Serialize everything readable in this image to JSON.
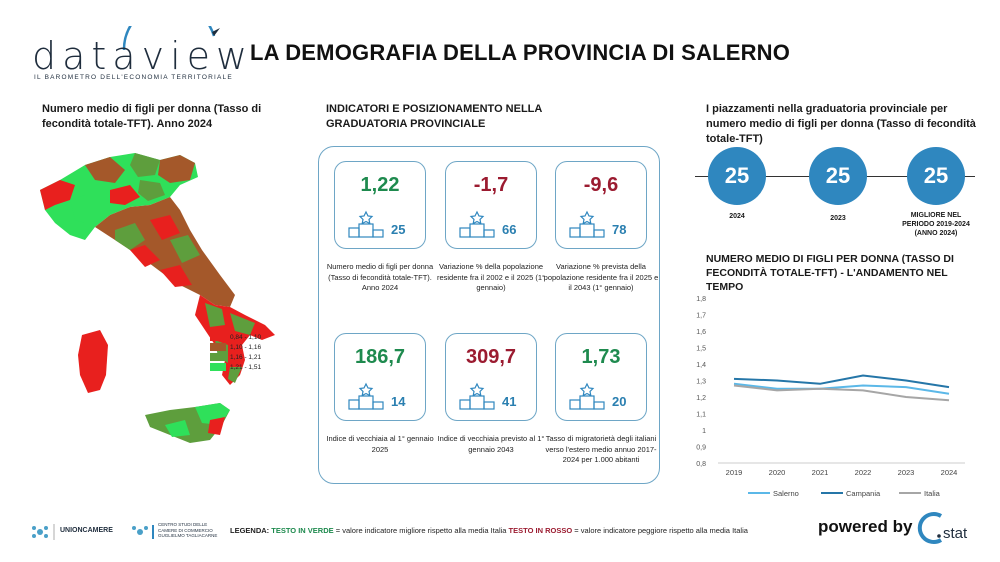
{
  "brand": {
    "logo_word": "dataview",
    "logo_tagline": "IL BAROMETRO DELL'ECONOMIA TERRITORIALE"
  },
  "title": "LA DEMOGRAFIA DELLA PROVINCIA DI SALERNO",
  "map": {
    "title": "Numero medio di figli per donna (Tasso di fecondità totale-TFT). Anno 2024",
    "legend": [
      {
        "label": "0,84 - 1,10",
        "color": "#e8201e"
      },
      {
        "label": "1,10 - 1,16",
        "color": "#a4582a"
      },
      {
        "label": "1,16 - 1,21",
        "color": "#5e9e3d"
      },
      {
        "label": "1,21 - 1,51",
        "color": "#2fe05a"
      }
    ]
  },
  "indicators": {
    "title": "INDICATORI E POSIZIONAMENTO NELLA GRADUATORIA PROVINCIALE",
    "cards": [
      {
        "value": "1,22",
        "tone": "green",
        "rank": "25",
        "desc": "Numero medio di figli per donna (Tasso di fecondità totale-TFT). Anno 2024"
      },
      {
        "value": "-1,7",
        "tone": "red",
        "rank": "66",
        "desc": "Variazione % della popolazione residente fra il 2002 e il 2025 (1° gennaio)"
      },
      {
        "value": "-9,6",
        "tone": "red",
        "rank": "78",
        "desc": "Variazione % prevista della popolazione residente fra il 2025 e il 2043 (1° gennaio)"
      },
      {
        "value": "186,7",
        "tone": "green",
        "rank": "14",
        "desc": "Indice di vecchiaia al 1° gennaio 2025"
      },
      {
        "value": "309,7",
        "tone": "red",
        "rank": "41",
        "desc": "Indice di vecchiaia previsto al 1° gennaio 2043"
      },
      {
        "value": "1,73",
        "tone": "green",
        "rank": "20",
        "desc": "Tasso di migratorietà degli italiani verso l'estero medio annuo 2017-2024 per 1.000 abitanti"
      }
    ]
  },
  "ranking": {
    "title": "I piazzamenti nella graduatoria provinciale per numero medio di figli per donna (Tasso di fecondità totale-TFT)",
    "items": [
      {
        "value": "25",
        "label": "2024"
      },
      {
        "value": "25",
        "label": "2023"
      },
      {
        "value": "25",
        "label": "MIGLIORE NEL PERIODO 2019-2024 (ANNO 2024)"
      }
    ]
  },
  "trend": {
    "title": "NUMERO MEDIO DI FIGLI PER DONNA (TASSO DI FECONDITÀ TOTALE-TFT) - L'ANDAMENTO NEL TEMPO"
  },
  "chart_data": {
    "type": "line",
    "title": "NUMERO MEDIO DI FIGLI PER DONNA (TASSO DI FECONDITÀ TOTALE-TFT) - L'ANDAMENTO NEL TEMPO",
    "x": [
      "2019",
      "2020",
      "2021",
      "2022",
      "2023",
      "2024"
    ],
    "y_ticks": [
      "0,8",
      "0,9",
      "1",
      "1,1",
      "1,2",
      "1,3",
      "1,4",
      "1,5",
      "1,6",
      "1,7",
      "1,8"
    ],
    "ylim": [
      0.8,
      1.8
    ],
    "series": [
      {
        "name": "Salerno",
        "color": "#5bb8e8",
        "values": [
          1.28,
          1.25,
          1.25,
          1.27,
          1.26,
          1.22
        ]
      },
      {
        "name": "Campania",
        "color": "#2576a8",
        "values": [
          1.31,
          1.3,
          1.28,
          1.33,
          1.3,
          1.26
        ]
      },
      {
        "name": "Italia",
        "color": "#a6a6a6",
        "values": [
          1.27,
          1.24,
          1.25,
          1.24,
          1.2,
          1.18
        ]
      }
    ],
    "legend_position": "bottom"
  },
  "footer": {
    "unioncamere": "UNIONCAMERE",
    "tagliacarne": "CENTRO STUDI DELLE CAMERE DI COMMERCIO GUGLIELMO TAGLIACARNE",
    "legend_label": "LEGENDA:",
    "legend_green": "TESTO IN VERDE",
    "legend_mid": "= valore indicatore migliore rispetto alla media Italia",
    "legend_red": "TESTO IN ROSSO",
    "legend_end": "= valore indicatore peggiore rispetto alla media Italia",
    "powered": "powered by",
    "stat": "stat"
  }
}
